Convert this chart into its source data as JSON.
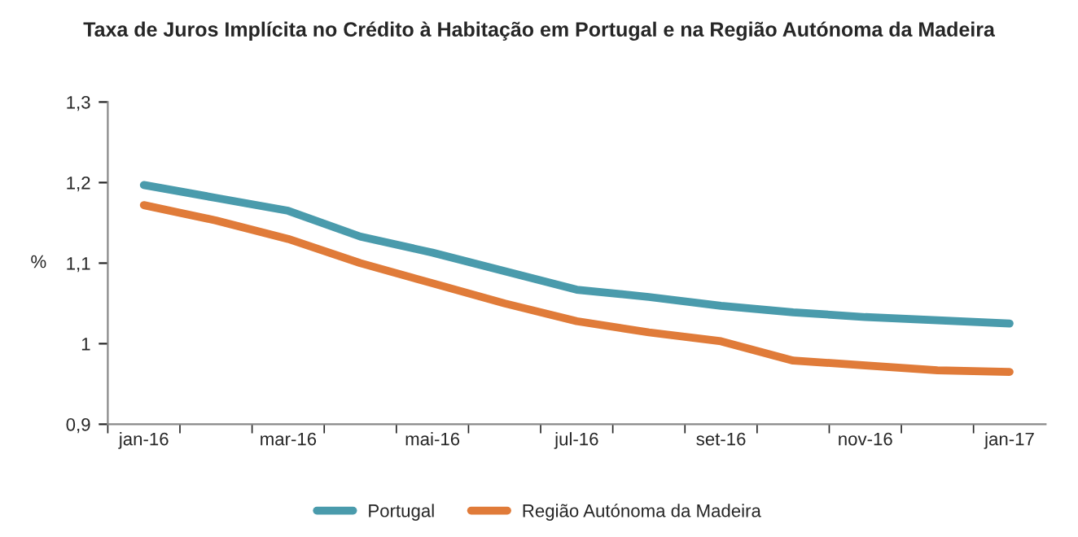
{
  "chart_data": {
    "type": "line",
    "title": "Taxa de Juros Implícita no Crédito à Habitação em Portugal e na Região Autónoma da Madeira",
    "ylabel": "%",
    "categories": [
      "jan-16",
      null,
      "mar-16",
      null,
      "mai-16",
      null,
      "jul-16",
      null,
      "set-16",
      null,
      "nov-16",
      null,
      "jan-17"
    ],
    "series": [
      {
        "name": "Portugal",
        "color": "#4a9bac",
        "values": [
          1.197,
          1.181,
          1.165,
          1.133,
          1.113,
          1.09,
          1.067,
          1.058,
          1.047,
          1.039,
          1.033,
          1.029,
          1.025
        ]
      },
      {
        "name": "Região Autónoma da Madeira",
        "color": "#e07b39",
        "values": [
          1.172,
          1.153,
          1.13,
          1.1,
          1.075,
          1.05,
          1.028,
          1.014,
          1.003,
          0.979,
          0.973,
          0.967,
          0.965
        ]
      }
    ],
    "ylim": [
      0.9,
      1.3
    ],
    "yticks": [
      {
        "value": 0.9,
        "label": "0,9"
      },
      1,
      {
        "value": 1.1,
        "label": "1,1"
      },
      {
        "value": 1.2,
        "label": "1,2"
      },
      {
        "value": 1.3,
        "label": "1,3"
      }
    ],
    "grid": false,
    "legend": "bottom",
    "marker": "none",
    "line_style": "solid"
  }
}
